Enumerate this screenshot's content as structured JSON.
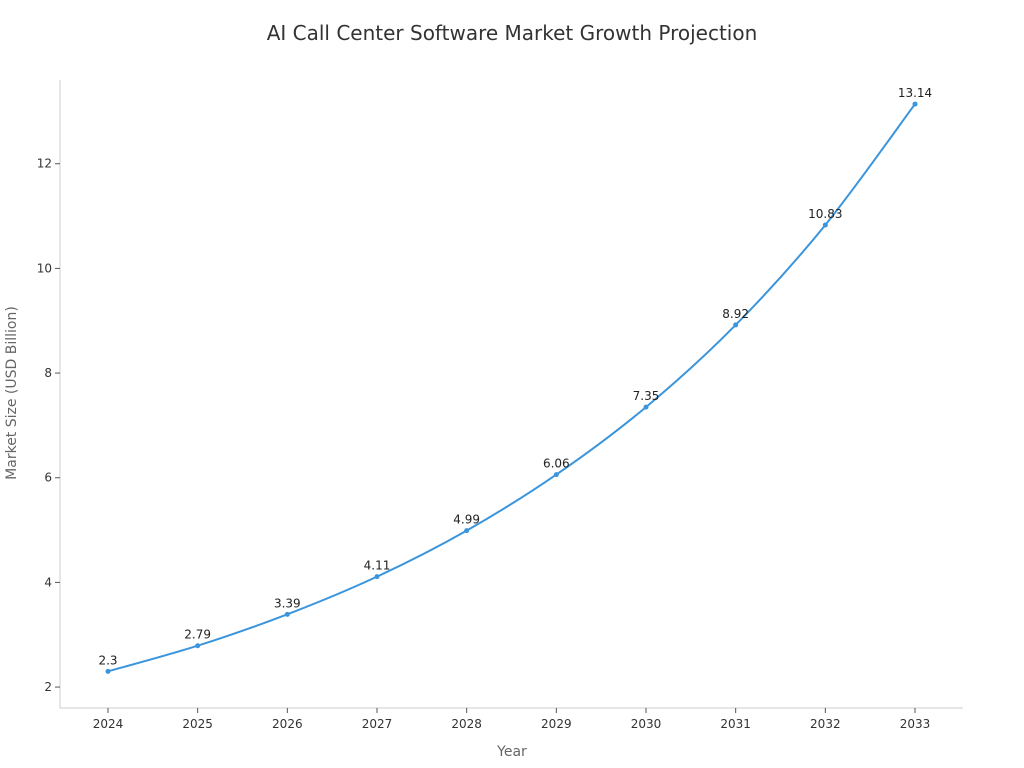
{
  "chart_data": {
    "type": "line",
    "title": "AI Call Center Software Market Growth Projection",
    "xlabel": "Year",
    "ylabel": "Market Size (USD Billion)",
    "x": [
      "2024",
      "2025",
      "2026",
      "2027",
      "2028",
      "2029",
      "2030",
      "2031",
      "2032",
      "2033"
    ],
    "series": [
      {
        "values": [
          2.3,
          2.79,
          3.39,
          4.11,
          4.99,
          6.06,
          7.35,
          8.92,
          10.83,
          13.14
        ],
        "data_labels": [
          "2.3",
          "2.79",
          "3.39",
          "4.11",
          "4.99",
          "6.06",
          "7.35",
          "8.92",
          "10.83",
          "13.14"
        ]
      }
    ],
    "yticks": [
      "2",
      "4",
      "6",
      "8",
      "10",
      "12"
    ],
    "ylim": [
      1.6,
      13.6
    ],
    "grid": false,
    "legend": "none",
    "colors": {
      "line": "#3a95dd",
      "axis": "#cccccc"
    }
  }
}
